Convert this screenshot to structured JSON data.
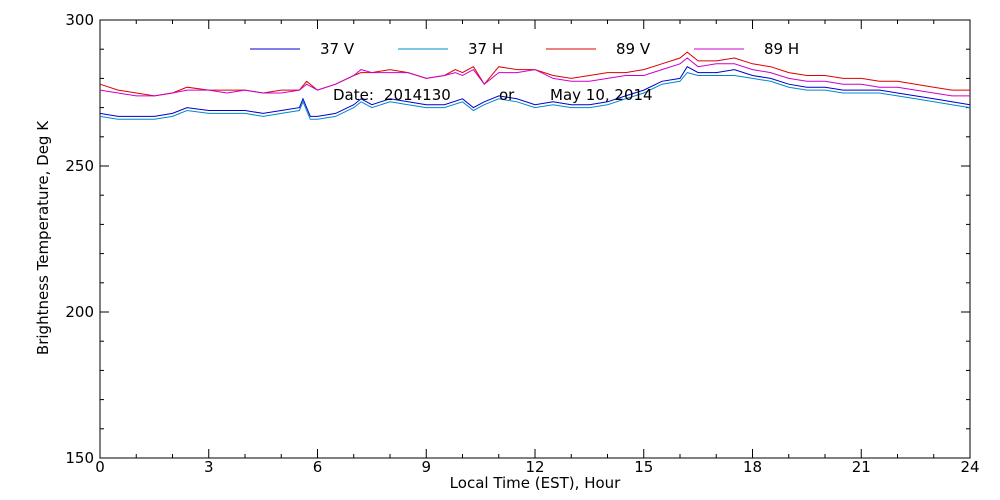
{
  "chart_data": {
    "type": "line",
    "xlabel": "Local Time (EST), Hour",
    "ylabel": "Brightness Temperature, Deg K",
    "xlim": [
      0,
      24
    ],
    "ylim": [
      150,
      300
    ],
    "xticks": [
      0,
      3,
      6,
      9,
      12,
      15,
      18,
      21,
      24
    ],
    "yticks": [
      150,
      200,
      250,
      300
    ],
    "grid": false,
    "legend_position": "top",
    "annotation": {
      "date_label": "Date:",
      "date_code": "2014130",
      "or_label": "or",
      "date_text": "May 10, 2014"
    },
    "series": [
      {
        "name": "37 V",
        "color": "#0000cc",
        "x": [
          0.0,
          0.5,
          1.0,
          1.5,
          2.0,
          2.4,
          3.0,
          3.5,
          4.0,
          4.5,
          5.0,
          5.5,
          5.6,
          5.8,
          6.0,
          6.5,
          7.0,
          7.2,
          7.5,
          8.0,
          8.5,
          9.0,
          9.5,
          10.0,
          10.3,
          10.6,
          11.0,
          11.5,
          12.0,
          12.5,
          13.0,
          13.5,
          14.0,
          14.5,
          15.0,
          15.5,
          16.0,
          16.2,
          16.5,
          17.0,
          17.5,
          18.0,
          18.5,
          19.0,
          19.5,
          20.0,
          20.5,
          21.0,
          21.5,
          22.0,
          22.5,
          23.0,
          23.5,
          24.0
        ],
        "values": [
          268,
          267,
          267,
          267,
          268,
          270,
          269,
          269,
          269,
          268,
          269,
          270,
          273,
          267,
          267,
          268,
          271,
          273,
          271,
          273,
          272,
          271,
          271,
          273,
          270,
          272,
          274,
          273,
          271,
          272,
          271,
          271,
          272,
          274,
          276,
          279,
          280,
          284,
          282,
          282,
          283,
          281,
          280,
          278,
          277,
          277,
          276,
          276,
          276,
          275,
          274,
          273,
          272,
          271
        ]
      },
      {
        "name": "37 H",
        "color": "#0088cc",
        "x": [
          0.0,
          0.5,
          1.0,
          1.5,
          2.0,
          2.4,
          3.0,
          3.5,
          4.0,
          4.5,
          5.0,
          5.5,
          5.6,
          5.8,
          6.0,
          6.5,
          7.0,
          7.2,
          7.5,
          8.0,
          8.5,
          9.0,
          9.5,
          10.0,
          10.3,
          10.6,
          11.0,
          11.5,
          12.0,
          12.5,
          13.0,
          13.5,
          14.0,
          14.5,
          15.0,
          15.5,
          16.0,
          16.2,
          16.5,
          17.0,
          17.5,
          18.0,
          18.5,
          19.0,
          19.5,
          20.0,
          20.5,
          21.0,
          21.5,
          22.0,
          22.5,
          23.0,
          23.5,
          24.0
        ],
        "values": [
          267,
          266,
          266,
          266,
          267,
          269,
          268,
          268,
          268,
          267,
          268,
          269,
          272,
          266,
          266,
          267,
          270,
          272,
          270,
          272,
          271,
          270,
          270,
          272,
          269,
          271,
          273,
          272,
          270,
          271,
          270,
          270,
          271,
          273,
          275,
          278,
          279,
          282,
          281,
          281,
          281,
          280,
          279,
          277,
          276,
          276,
          275,
          275,
          275,
          274,
          273,
          272,
          271,
          270
        ]
      },
      {
        "name": "89 V",
        "color": "#dd0000",
        "x": [
          0.0,
          0.5,
          1.0,
          1.5,
          2.0,
          2.4,
          3.0,
          3.5,
          4.0,
          4.5,
          5.0,
          5.5,
          5.7,
          6.0,
          6.5,
          7.0,
          7.2,
          7.5,
          8.0,
          8.5,
          9.0,
          9.5,
          9.8,
          10.0,
          10.3,
          10.6,
          11.0,
          11.5,
          12.0,
          12.5,
          13.0,
          13.5,
          14.0,
          14.5,
          15.0,
          15.5,
          16.0,
          16.2,
          16.5,
          17.0,
          17.5,
          18.0,
          18.5,
          19.0,
          19.5,
          20.0,
          20.5,
          21.0,
          21.5,
          22.0,
          22.5,
          23.0,
          23.5,
          24.0
        ],
        "values": [
          278,
          276,
          275,
          274,
          275,
          277,
          276,
          276,
          276,
          275,
          276,
          276,
          279,
          276,
          278,
          281,
          282,
          282,
          283,
          282,
          280,
          281,
          283,
          282,
          284,
          278,
          284,
          283,
          283,
          281,
          280,
          281,
          282,
          282,
          283,
          285,
          287,
          289,
          286,
          286,
          287,
          285,
          284,
          282,
          281,
          281,
          280,
          280,
          279,
          279,
          278,
          277,
          276,
          276
        ]
      },
      {
        "name": "89 H",
        "color": "#cc00cc",
        "x": [
          0.0,
          0.5,
          1.0,
          1.5,
          2.0,
          2.4,
          3.0,
          3.5,
          4.0,
          4.5,
          5.0,
          5.5,
          5.7,
          6.0,
          6.5,
          7.0,
          7.2,
          7.5,
          8.0,
          8.5,
          9.0,
          9.5,
          9.8,
          10.0,
          10.3,
          10.6,
          11.0,
          11.5,
          12.0,
          12.5,
          13.0,
          13.5,
          14.0,
          14.5,
          15.0,
          15.5,
          16.0,
          16.2,
          16.5,
          17.0,
          17.5,
          18.0,
          18.5,
          19.0,
          19.5,
          20.0,
          20.5,
          21.0,
          21.5,
          22.0,
          22.5,
          23.0,
          23.5,
          24.0
        ],
        "values": [
          276,
          275,
          274,
          274,
          275,
          276,
          276,
          275,
          276,
          275,
          275,
          276,
          278,
          276,
          278,
          281,
          283,
          282,
          282,
          282,
          280,
          281,
          282,
          281,
          283,
          278,
          282,
          282,
          283,
          280,
          279,
          279,
          280,
          281,
          281,
          283,
          285,
          287,
          284,
          285,
          285,
          283,
          282,
          280,
          279,
          279,
          278,
          278,
          277,
          277,
          276,
          275,
          274,
          274
        ]
      }
    ]
  }
}
